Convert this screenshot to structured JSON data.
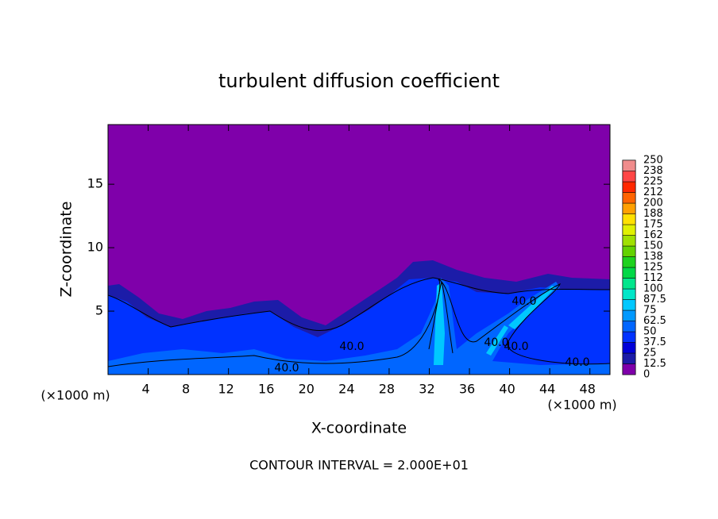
{
  "chart_data": {
    "type": "contour",
    "title": "turbulent diffusion coefficient",
    "x_label": "X-coordinate",
    "y_label": "Z-coordinate",
    "y_unit": "(×1000 m)",
    "x_unit": "(×1000 m)",
    "footnote": "CONTOUR INTERVAL = 2.000E+01",
    "xlim": [
      0,
      50
    ],
    "xticks": [
      4,
      8,
      12,
      16,
      20,
      24,
      28,
      32,
      36,
      40,
      44,
      48
    ],
    "ylim": [
      0,
      19.7
    ],
    "yticks": [
      5,
      10,
      15
    ],
    "colorbar": {
      "levels": [
        0,
        12.5,
        25,
        37.5,
        50,
        62.5,
        75,
        87.5,
        100,
        {
          "value": 112.5,
          "label": "112"
        },
        125,
        {
          "value": 137.5,
          "label": "138"
        },
        150,
        {
          "value": 162.5,
          "label": "162"
        },
        175,
        {
          "value": 187.5,
          "label": "188"
        },
        200,
        {
          "value": 212.5,
          "label": "212"
        },
        225,
        {
          "value": 237.5,
          "label": "238"
        },
        250
      ],
      "colors": [
        "#7f00aa",
        "#1c1ca8",
        "#0000d8",
        "#0032ff",
        "#0066ff",
        "#0099ff",
        "#00c8ff",
        "#00e6c8",
        "#00e68c",
        "#00d846",
        "#1ed21e",
        "#64d200",
        "#a0e000",
        "#e0f000",
        "#ffe000",
        "#ffa000",
        "#ff6400",
        "#ff2800",
        "#ff4646",
        "#f08c8c"
      ]
    },
    "contour_labels": [
      "40.0",
      "40.0",
      "40.0",
      "40.0",
      "40.0",
      "40.0"
    ]
  }
}
